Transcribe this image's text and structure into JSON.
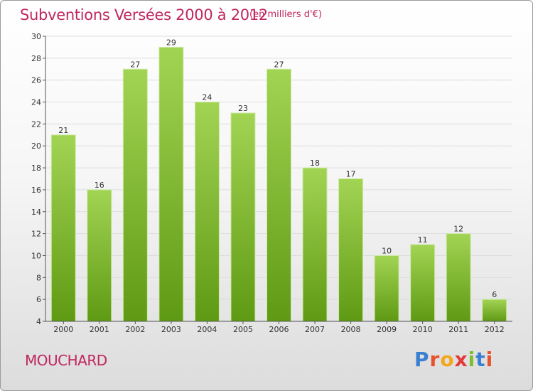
{
  "header": {
    "title": "Subventions Versées 2000 à 2012",
    "unit": "(en milliers d'€)"
  },
  "footer": {
    "commune": "MOUCHARD",
    "logo": "Proxiti"
  },
  "colors": {
    "bar_top": "#a2d453",
    "bar_bottom": "#5f9a14",
    "title": "#c0265f",
    "axis_text": "#333333",
    "gridline": "#dddddd"
  },
  "chart_data": {
    "type": "bar",
    "title": "Subventions Versées 2000 à 2012",
    "subtitle": "(en milliers d'€)",
    "categories": [
      "2000",
      "2001",
      "2002",
      "2003",
      "2004",
      "2005",
      "2006",
      "2007",
      "2008",
      "2009",
      "2010",
      "2011",
      "2012"
    ],
    "values": [
      21,
      16,
      27,
      29,
      24,
      23,
      27,
      18,
      17,
      10,
      11,
      12,
      6
    ],
    "ylim": [
      4,
      30
    ],
    "yticks": [
      4,
      6,
      8,
      10,
      12,
      14,
      16,
      18,
      20,
      22,
      24,
      26,
      28,
      30
    ],
    "grid": true,
    "data_labels": true
  }
}
